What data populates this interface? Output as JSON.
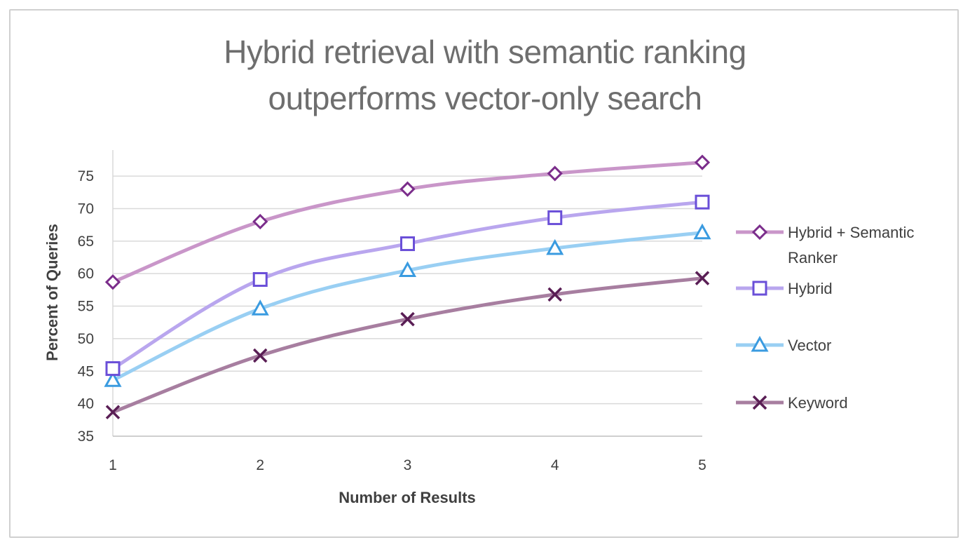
{
  "chart_data": {
    "type": "line",
    "title_lines": [
      "Hybrid retrieval with semantic ranking",
      "outperforms vector-only search"
    ],
    "xlabel": "Number of Results",
    "ylabel": "Percent of Queries",
    "x": [
      1,
      2,
      3,
      4,
      5
    ],
    "x_tick_labels": [
      "1",
      "2",
      "3",
      "4",
      "5"
    ],
    "y_ticks": [
      35,
      40,
      45,
      50,
      55,
      60,
      65,
      70,
      75
    ],
    "ylim": [
      35,
      79
    ],
    "grid": true,
    "legend_position": "right",
    "series": [
      {
        "name": "Hybrid + Semantic Ranker",
        "legend_lines": [
          "Hybrid + Semantic",
          "Ranker"
        ],
        "values": [
          58.7,
          68.0,
          73.0,
          75.4,
          77.1
        ],
        "color": "#c996c9",
        "marker": "diamond",
        "marker_color": "#7b2d8b"
      },
      {
        "name": "Hybrid",
        "legend_lines": [
          "Hybrid"
        ],
        "values": [
          45.4,
          59.1,
          64.6,
          68.6,
          71.0
        ],
        "color": "#b9a6ee",
        "marker": "square",
        "marker_color": "#6a4fd8"
      },
      {
        "name": "Vector",
        "legend_lines": [
          "Vector"
        ],
        "values": [
          43.6,
          54.6,
          60.5,
          63.9,
          66.3
        ],
        "color": "#99cff3",
        "marker": "triangle",
        "marker_color": "#3a9be0"
      },
      {
        "name": "Keyword",
        "legend_lines": [
          "Keyword"
        ],
        "values": [
          38.7,
          47.4,
          53.0,
          56.8,
          59.3
        ],
        "color": "#a77ea0",
        "marker": "x",
        "marker_color": "#5a1e55"
      }
    ]
  }
}
